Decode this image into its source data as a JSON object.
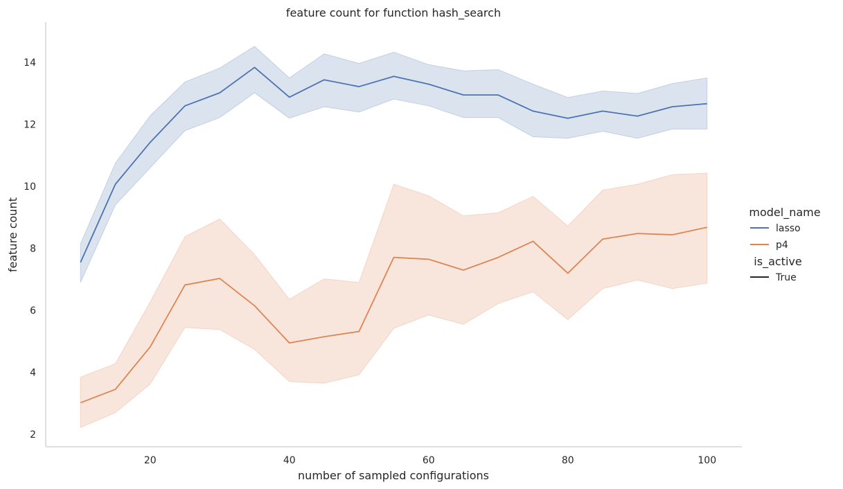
{
  "chart_data": {
    "type": "line",
    "title": "feature count for function hash_search",
    "xlabel": "number of sampled configurations",
    "ylabel": "feature count",
    "xlim": [
      5,
      105
    ],
    "ylim": [
      1.6,
      15.3
    ],
    "xticks": [
      20,
      40,
      60,
      80,
      100
    ],
    "yticks": [
      2,
      4,
      6,
      8,
      10,
      12,
      14
    ],
    "grid": false,
    "x": [
      10,
      15,
      20,
      25,
      30,
      35,
      40,
      45,
      50,
      55,
      60,
      65,
      70,
      75,
      80,
      85,
      90,
      95,
      100
    ],
    "series": [
      {
        "name": "lasso",
        "color": "#4c72b0",
        "values": [
          7.55,
          10.07,
          11.42,
          12.6,
          13.02,
          13.84,
          12.88,
          13.44,
          13.22,
          13.55,
          13.3,
          12.95,
          12.95,
          12.43,
          12.2,
          12.43,
          12.27,
          12.57,
          12.67
        ],
        "ci_lower": [
          6.9,
          9.4,
          10.6,
          11.8,
          12.22,
          13.02,
          12.2,
          12.57,
          12.4,
          12.82,
          12.6,
          12.22,
          12.22,
          11.6,
          11.55,
          11.78,
          11.55,
          11.85,
          11.85
        ],
        "ci_upper": [
          8.15,
          10.75,
          12.28,
          13.37,
          13.82,
          14.52,
          13.5,
          14.28,
          13.97,
          14.33,
          13.93,
          13.73,
          13.77,
          13.3,
          12.87,
          13.08,
          13.0,
          13.32,
          13.5
        ]
      },
      {
        "name": "p4",
        "color": "#dd8452",
        "values": [
          3.02,
          3.45,
          4.82,
          6.82,
          7.03,
          6.15,
          4.95,
          5.15,
          5.32,
          7.71,
          7.65,
          7.3,
          7.71,
          8.23,
          7.2,
          8.3,
          8.48,
          8.44,
          8.68
        ],
        "ci_lower": [
          2.22,
          2.7,
          3.62,
          5.45,
          5.38,
          4.74,
          3.7,
          3.65,
          3.92,
          5.42,
          5.85,
          5.55,
          6.22,
          6.6,
          5.7,
          6.7,
          6.98,
          6.7,
          6.88
        ],
        "ci_upper": [
          3.85,
          4.28,
          6.27,
          8.38,
          8.95,
          7.8,
          6.36,
          7.02,
          6.9,
          10.07,
          9.7,
          9.05,
          9.15,
          9.68,
          8.72,
          9.88,
          10.07,
          10.38,
          10.43
        ]
      }
    ],
    "legend": {
      "placement": "right",
      "hue_title": "model_name",
      "style_title": "is_active",
      "style_entries": [
        {
          "name": "True",
          "color": "#262626"
        }
      ]
    }
  }
}
